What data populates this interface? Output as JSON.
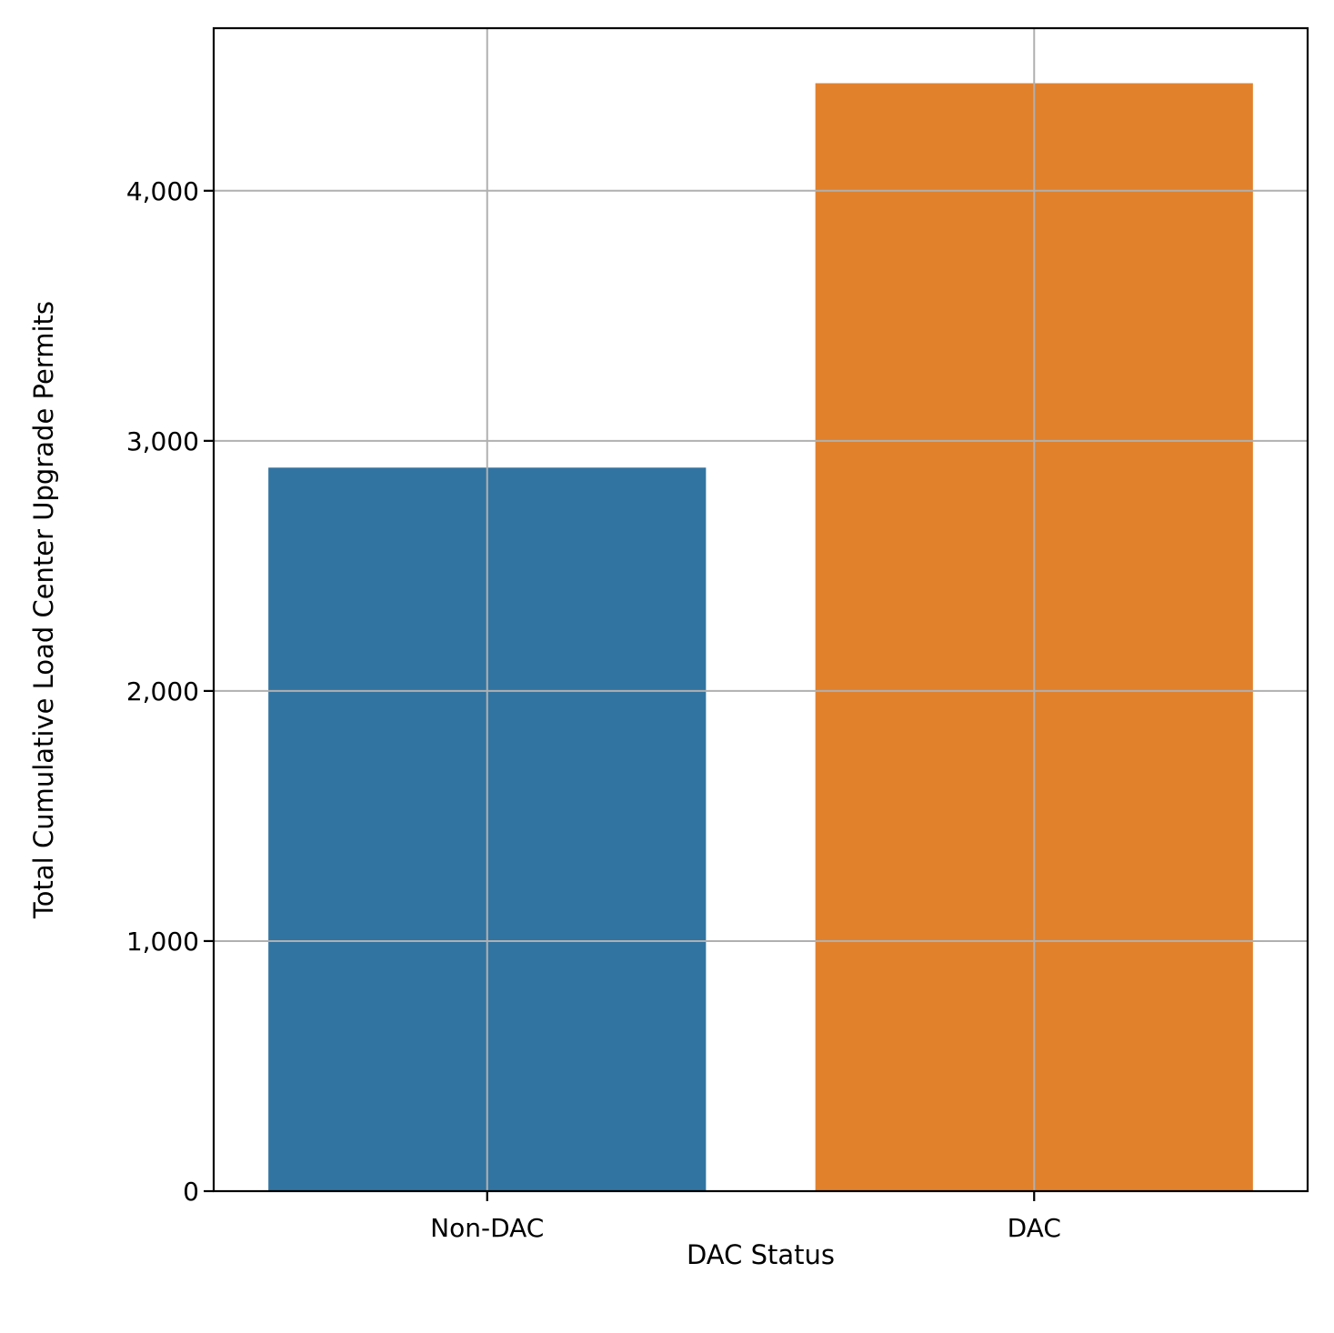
{
  "chart_data": {
    "type": "bar",
    "categories": [
      "Non-DAC",
      "DAC"
    ],
    "values": [
      2893,
      4430
    ],
    "colors": [
      "#3274a1",
      "#e1812c"
    ],
    "title": "",
    "xlabel": "DAC Status",
    "ylabel": "Total Cumulative Load Center Upgrade Permits",
    "ylim": [
      0,
      4650
    ],
    "yticks": [
      0,
      1000,
      2000,
      3000,
      4000
    ],
    "ytick_labels": [
      "0",
      "1,000",
      "2,000",
      "3,000",
      "4,000"
    ],
    "grid": true,
    "legend": "none"
  }
}
